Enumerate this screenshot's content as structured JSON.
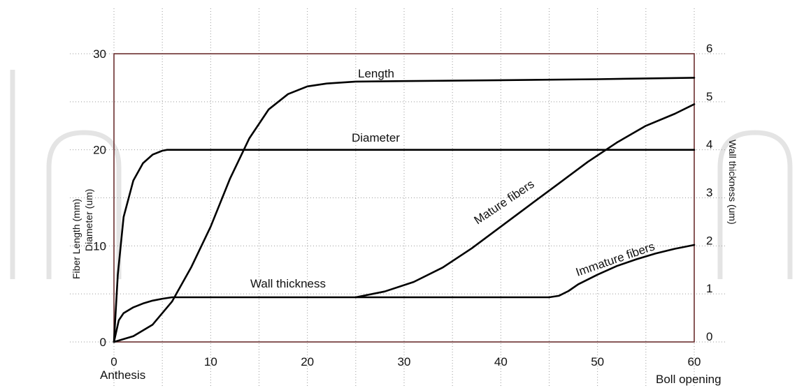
{
  "chart_data": {
    "type": "line",
    "title": "",
    "xlabel_start": "Anthesis",
    "xlabel_end": "Boll opening",
    "ylabel_left": [
      "Fiber Length (mm)",
      "Diameter (um)"
    ],
    "ylabel_right": "Wall thickness (um)",
    "xlim": [
      0,
      60
    ],
    "ylim_left": [
      0,
      30
    ],
    "ylim_right": [
      0,
      6
    ],
    "x_ticks": [
      "0",
      "10",
      "20",
      "30",
      "40",
      "50",
      "60"
    ],
    "y_left_ticks": [
      "0",
      "10",
      "20",
      "30"
    ],
    "y_right_ticks": [
      "0",
      "1",
      "2",
      "3",
      "4",
      "5",
      "6"
    ],
    "grid": true,
    "series": [
      {
        "name": "Length",
        "axis": "left",
        "points": [
          [
            0,
            0
          ],
          [
            2,
            0.6
          ],
          [
            4,
            1.8
          ],
          [
            6,
            4.2
          ],
          [
            8,
            7.8
          ],
          [
            10,
            12
          ],
          [
            12,
            17
          ],
          [
            14,
            21.2
          ],
          [
            16,
            24.2
          ],
          [
            18,
            25.8
          ],
          [
            20,
            26.6
          ],
          [
            22,
            26.9
          ],
          [
            25,
            27.1
          ],
          [
            30,
            27.15
          ],
          [
            40,
            27.25
          ],
          [
            50,
            27.35
          ],
          [
            60,
            27.5
          ]
        ]
      },
      {
        "name": "Diameter",
        "axis": "left",
        "points": [
          [
            0,
            0
          ],
          [
            0.4,
            7
          ],
          [
            1,
            13
          ],
          [
            2,
            16.8
          ],
          [
            3,
            18.6
          ],
          [
            4,
            19.5
          ],
          [
            5,
            19.9
          ],
          [
            5.5,
            20
          ],
          [
            10,
            20
          ],
          [
            20,
            20
          ],
          [
            30,
            20
          ],
          [
            40,
            20
          ],
          [
            50,
            20
          ],
          [
            60,
            20
          ]
        ]
      },
      {
        "name": "Wall thickness",
        "axis": "right",
        "points": [
          [
            0,
            0
          ],
          [
            0.5,
            0.45
          ],
          [
            1,
            0.6
          ],
          [
            2,
            0.72
          ],
          [
            3,
            0.8
          ],
          [
            4,
            0.86
          ],
          [
            5,
            0.9
          ],
          [
            6,
            0.93
          ],
          [
            10,
            0.93
          ],
          [
            20,
            0.93
          ],
          [
            30,
            0.93
          ],
          [
            40,
            0.93
          ],
          [
            45,
            0.93
          ]
        ]
      },
      {
        "name": "Mature fibers",
        "axis": "right",
        "points": [
          [
            25,
            0.93
          ],
          [
            28,
            1.05
          ],
          [
            31,
            1.25
          ],
          [
            34,
            1.55
          ],
          [
            37,
            1.95
          ],
          [
            40,
            2.4
          ],
          [
            43,
            2.85
          ],
          [
            46,
            3.3
          ],
          [
            49,
            3.75
          ],
          [
            52,
            4.15
          ],
          [
            55,
            4.5
          ],
          [
            58,
            4.75
          ],
          [
            60,
            4.95
          ]
        ]
      },
      {
        "name": "Immature fibers",
        "axis": "right",
        "points": [
          [
            45,
            0.93
          ],
          [
            46,
            0.96
          ],
          [
            47,
            1.06
          ],
          [
            48,
            1.2
          ],
          [
            50,
            1.4
          ],
          [
            52,
            1.58
          ],
          [
            54,
            1.72
          ],
          [
            56,
            1.84
          ],
          [
            58,
            1.94
          ],
          [
            60,
            2.02
          ]
        ]
      }
    ],
    "annotations": [
      {
        "text": "Length",
        "series": "Length"
      },
      {
        "text": "Diameter",
        "series": "Diameter"
      },
      {
        "text": "Wall thickness",
        "series": "Wall thickness"
      },
      {
        "text": "Mature fibers",
        "series": "Mature fibers"
      },
      {
        "text": "Immature fibers",
        "series": "Immature fibers"
      }
    ]
  },
  "colors": {
    "line": "#000000",
    "axis": "#6b2f2f",
    "grid": "#9a9a9a",
    "watermark": "#e6e6e6"
  }
}
